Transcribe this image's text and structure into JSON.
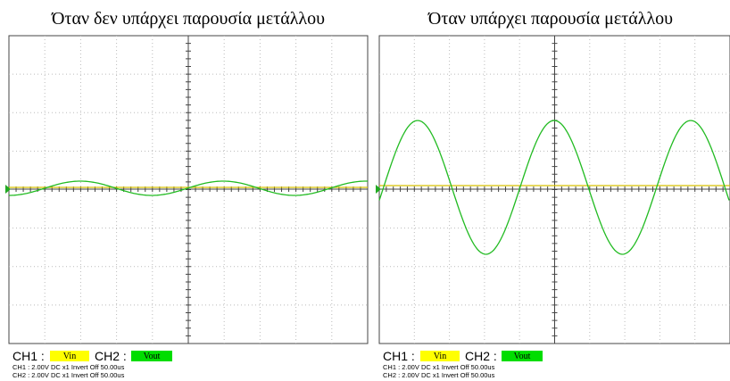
{
  "panels": [
    {
      "title": "Όταν δεν υπάρχει παρουσία μετάλλου",
      "ch1_label": "CH1 :",
      "ch1_name": "Vin",
      "ch2_label": "CH2 :",
      "ch2_name": "Vout",
      "info": [
        "CH1 :  2.00V  DC  x1  Invert Off  50.00us",
        "CH2 :  2.00V  DC  x1  Invert Off  50.00us"
      ]
    },
    {
      "title": "Όταν υπάρχει παρουσία μετάλλου",
      "ch1_label": "CH1 :",
      "ch1_name": "Vin",
      "ch2_label": "CH2 :",
      "ch2_name": "Vout",
      "info": [
        "CH1 :  2.00V  DC  x1  Invert Off  50.00us",
        "CH2 :  2.00V  DC  x1  Invert Off  50.00us"
      ]
    }
  ]
}
